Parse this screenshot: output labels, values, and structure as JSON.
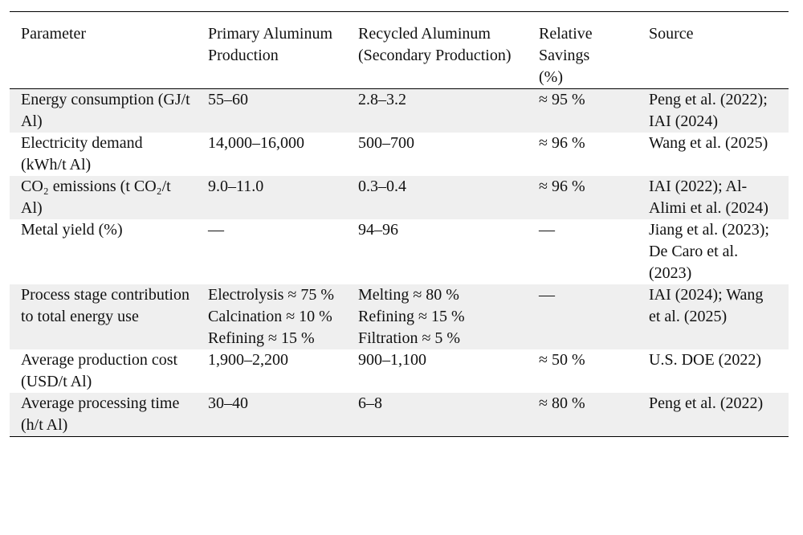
{
  "table": {
    "header": [
      "Parameter",
      "Primary Aluminum Production",
      "Recycled Aluminum (Secondary Production)",
      "Relative Savings (%)",
      "Source"
    ],
    "rows": [
      [
        "Energy consumption (GJ/t Al)",
        "55–60",
        "2.8–3.2",
        "≈ 95 %",
        "Peng et al. (2022); IAI (2024)"
      ],
      [
        "Electricity demand (kWh/t Al)",
        "14,000–16,000",
        "500–700",
        "≈ 96 %",
        "Wang et al. (2025)"
      ],
      [
        "CO₂ emissions (t CO₂/t Al)",
        "9.0–11.0",
        "0.3–0.4",
        "≈ 96 %",
        "IAI (2022); Al-Alimi et al. (2024)"
      ],
      [
        "Metal yield (%)",
        "—",
        "94–96",
        "—",
        "Jiang et al. (2023); De Caro et al. (2023)"
      ],
      [
        "Process stage contribution to total energy use",
        [
          "Electrolysis ≈ 75 %",
          "Calcination ≈ 10 %",
          "Refining ≈ 15 %"
        ],
        [
          "Melting ≈ 80 %",
          "Refining ≈ 15 %",
          "Filtration ≈ 5 %"
        ],
        "—",
        "IAI (2024); Wang et al. (2025)"
      ],
      [
        "Average production cost (USD/t Al)",
        "1,900–2,200",
        "900–1,100",
        "≈ 50 %",
        "U.S. DOE (2022)"
      ],
      [
        "Average processing time (h/t Al)",
        "30–40",
        "6–8",
        "≈ 80 %",
        "Peng et al. (2022)"
      ]
    ]
  }
}
